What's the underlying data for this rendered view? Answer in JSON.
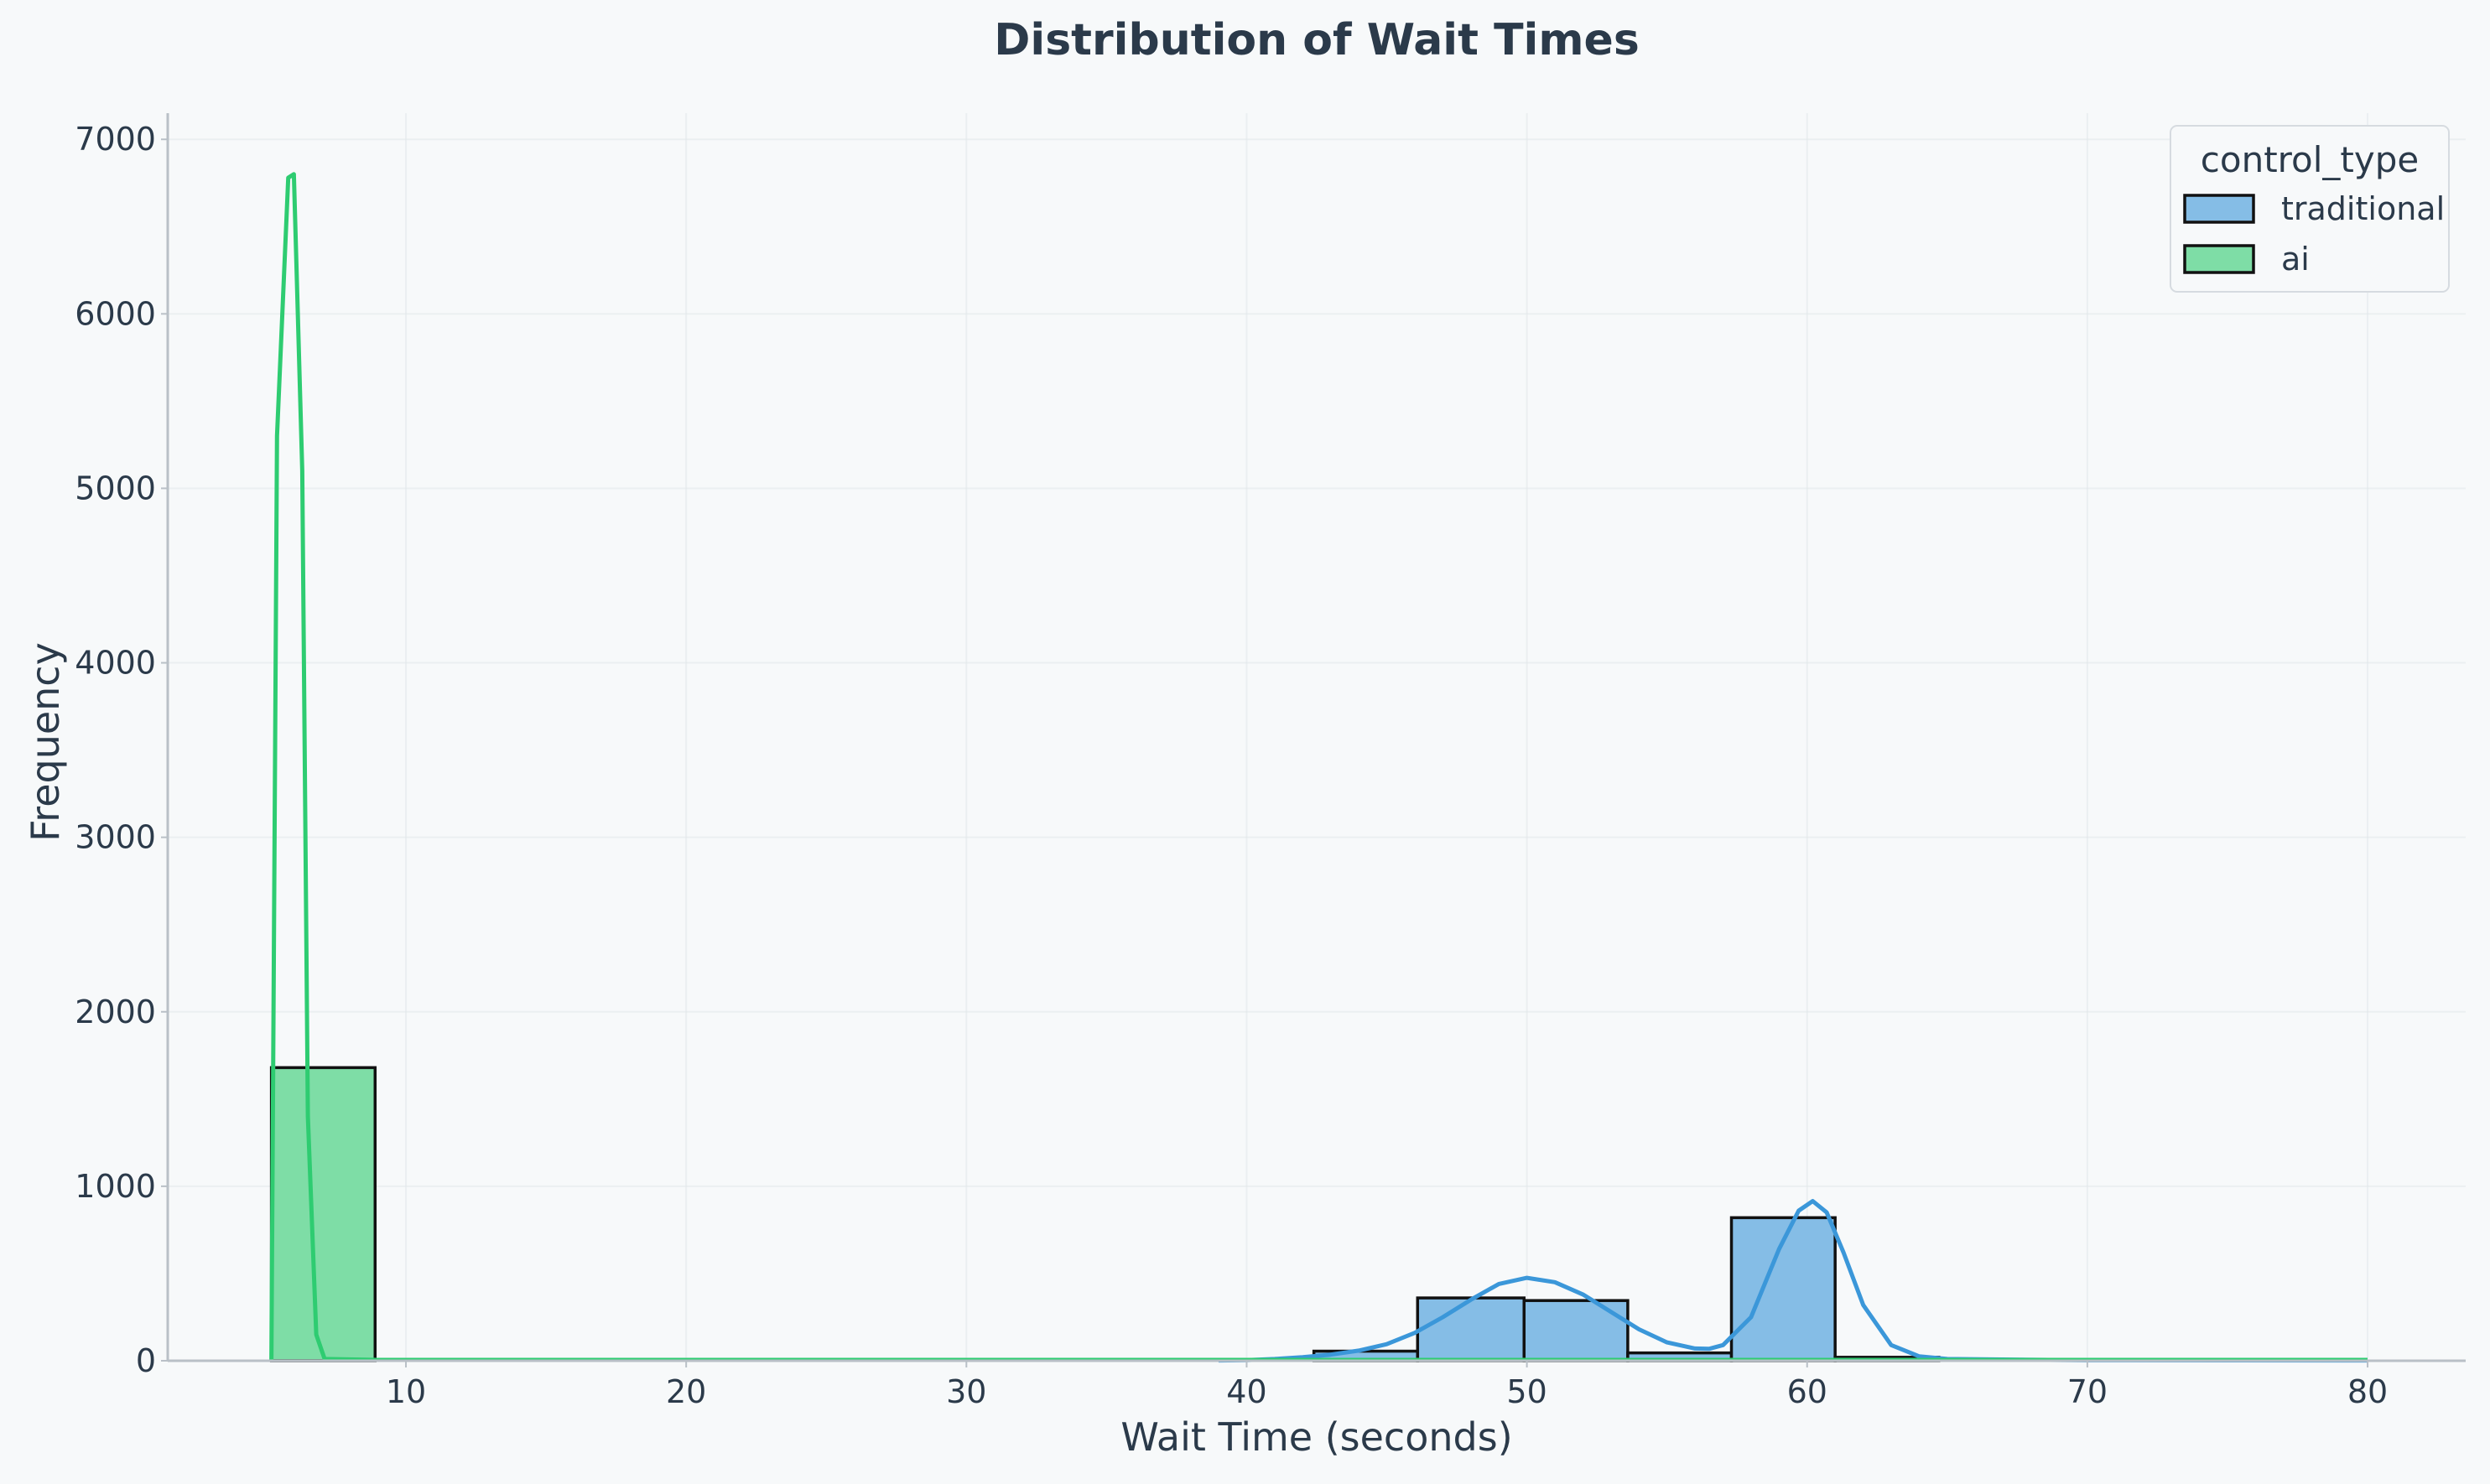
{
  "chart_data": {
    "type": "bar",
    "title": "Distribution of Wait Times",
    "xlabel": "Wait Time (seconds)",
    "ylabel": "Frequency",
    "xlim": [
      1.5,
      83.5
    ],
    "ylim": [
      0,
      7150
    ],
    "x_ticks": [
      10,
      20,
      30,
      40,
      50,
      60,
      70,
      80
    ],
    "y_ticks": [
      0,
      1000,
      2000,
      3000,
      4000,
      5000,
      6000,
      7000
    ],
    "grid": true,
    "legend": {
      "title": "control_type",
      "position": "top-right"
    },
    "bin_width": 3.72,
    "series": [
      {
        "name": "traditional",
        "color": "#3b97d9",
        "bins": [
          {
            "x0": 42.4,
            "x1": 46.1,
            "value": 55
          },
          {
            "x0": 46.1,
            "x1": 49.9,
            "value": 360
          },
          {
            "x0": 49.9,
            "x1": 53.6,
            "value": 345
          },
          {
            "x0": 53.6,
            "x1": 57.3,
            "value": 45
          },
          {
            "x0": 57.3,
            "x1": 61.0,
            "value": 820
          },
          {
            "x0": 61.0,
            "x1": 64.7,
            "value": 20
          }
        ],
        "kde": [
          [
            39,
            2
          ],
          [
            40,
            4
          ],
          [
            41,
            10
          ],
          [
            42,
            20
          ],
          [
            43,
            35
          ],
          [
            44,
            58
          ],
          [
            45,
            95
          ],
          [
            46,
            160
          ],
          [
            47,
            250
          ],
          [
            48,
            350
          ],
          [
            49,
            440
          ],
          [
            50,
            475
          ],
          [
            51,
            450
          ],
          [
            52,
            380
          ],
          [
            53,
            280
          ],
          [
            54,
            180
          ],
          [
            55,
            105
          ],
          [
            56,
            70
          ],
          [
            56.5,
            68
          ],
          [
            57,
            90
          ],
          [
            58,
            250
          ],
          [
            59,
            640
          ],
          [
            59.7,
            860
          ],
          [
            60.2,
            915
          ],
          [
            60.7,
            850
          ],
          [
            61.3,
            620
          ],
          [
            62,
            320
          ],
          [
            63,
            90
          ],
          [
            64,
            25
          ],
          [
            65,
            10
          ],
          [
            70,
            3
          ],
          [
            80,
            2
          ]
        ]
      },
      {
        "name": "ai",
        "color": "#2ecc71",
        "bins": [
          {
            "x0": 5.2,
            "x1": 8.9,
            "value": 1680
          }
        ],
        "kde": [
          [
            5.2,
            0
          ],
          [
            5.4,
            5300
          ],
          [
            5.8,
            6780
          ],
          [
            6.0,
            6800
          ],
          [
            6.3,
            5100
          ],
          [
            6.5,
            1400
          ],
          [
            6.8,
            150
          ],
          [
            7.1,
            10
          ],
          [
            9,
            5
          ],
          [
            80,
            5
          ]
        ]
      }
    ]
  }
}
